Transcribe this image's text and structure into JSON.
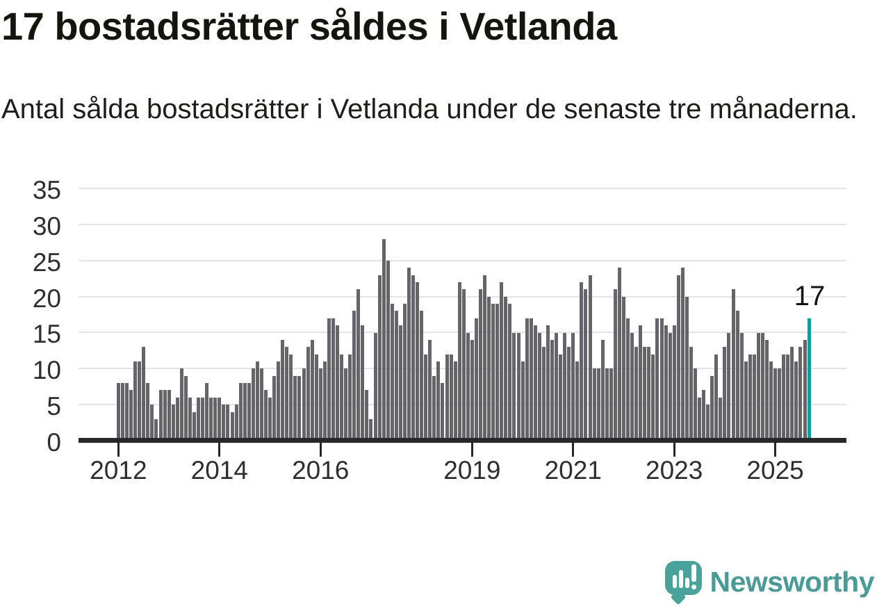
{
  "header": {
    "title": "17 bostadsrätter såldes i Vetlanda",
    "subtitle": "Antal sålda bostadsrätter i Vetlanda under de senaste tre månaderna."
  },
  "chart_data": {
    "type": "bar",
    "title": "17 bostadsrätter såldes i Vetlanda",
    "xlabel": "",
    "ylabel": "",
    "ylim": [
      0,
      35
    ],
    "grid": "horizontal",
    "y_ticks": [
      0,
      5,
      10,
      15,
      20,
      25,
      30,
      35
    ],
    "x_ticks": [
      {
        "label": "2012",
        "index": 0
      },
      {
        "label": "2014",
        "index": 24
      },
      {
        "label": "2016",
        "index": 48
      },
      {
        "label": "2019",
        "index": 84
      },
      {
        "label": "2021",
        "index": 108
      },
      {
        "label": "2023",
        "index": 132
      },
      {
        "label": "2025",
        "index": 156
      }
    ],
    "values": [
      8,
      8,
      8,
      7,
      11,
      11,
      13,
      8,
      5,
      3,
      7,
      7,
      7,
      5,
      6,
      10,
      9,
      6,
      4,
      6,
      6,
      8,
      6,
      6,
      6,
      5,
      5,
      4,
      5,
      8,
      8,
      8,
      10,
      11,
      10,
      7,
      6,
      9,
      11,
      14,
      13,
      12,
      9,
      9,
      10,
      13,
      14,
      12,
      10,
      11,
      17,
      17,
      16,
      12,
      10,
      12,
      18,
      21,
      16,
      7,
      3,
      15,
      23,
      28,
      25,
      19,
      18,
      16,
      19,
      24,
      23,
      22,
      18,
      12,
      14,
      9,
      11,
      8,
      12,
      12,
      11,
      22,
      21,
      15,
      14,
      17,
      21,
      23,
      20,
      19,
      19,
      22,
      20,
      19,
      15,
      15,
      11,
      17,
      17,
      16,
      15,
      13,
      16,
      14,
      15,
      12,
      15,
      13,
      15,
      11,
      22,
      21,
      23,
      10,
      10,
      14,
      10,
      10,
      21,
      24,
      20,
      17,
      15,
      13,
      16,
      13,
      13,
      12,
      17,
      17,
      16,
      15,
      16,
      23,
      24,
      20,
      13,
      10,
      6,
      7,
      5,
      9,
      12,
      6,
      13,
      15,
      21,
      18,
      15,
      11,
      12,
      12,
      15,
      15,
      14,
      11,
      10,
      10,
      12,
      12,
      13,
      11,
      13,
      14,
      17
    ],
    "highlight_last": true,
    "annotation": {
      "text": "17",
      "value": 17
    },
    "legend": null
  },
  "footer": {
    "brand": "Newsworthy"
  },
  "colors": {
    "bar": "#64646a",
    "highlight": "#0f9da1",
    "gridline": "#e3e3e3",
    "axis": "#28282b",
    "title_text": "#15150f",
    "body_text": "#1d1d1a",
    "tick_text": "#2e2e2e",
    "logo_teal": "#4aa29d",
    "logo_text_teal": "#4a9a96"
  }
}
